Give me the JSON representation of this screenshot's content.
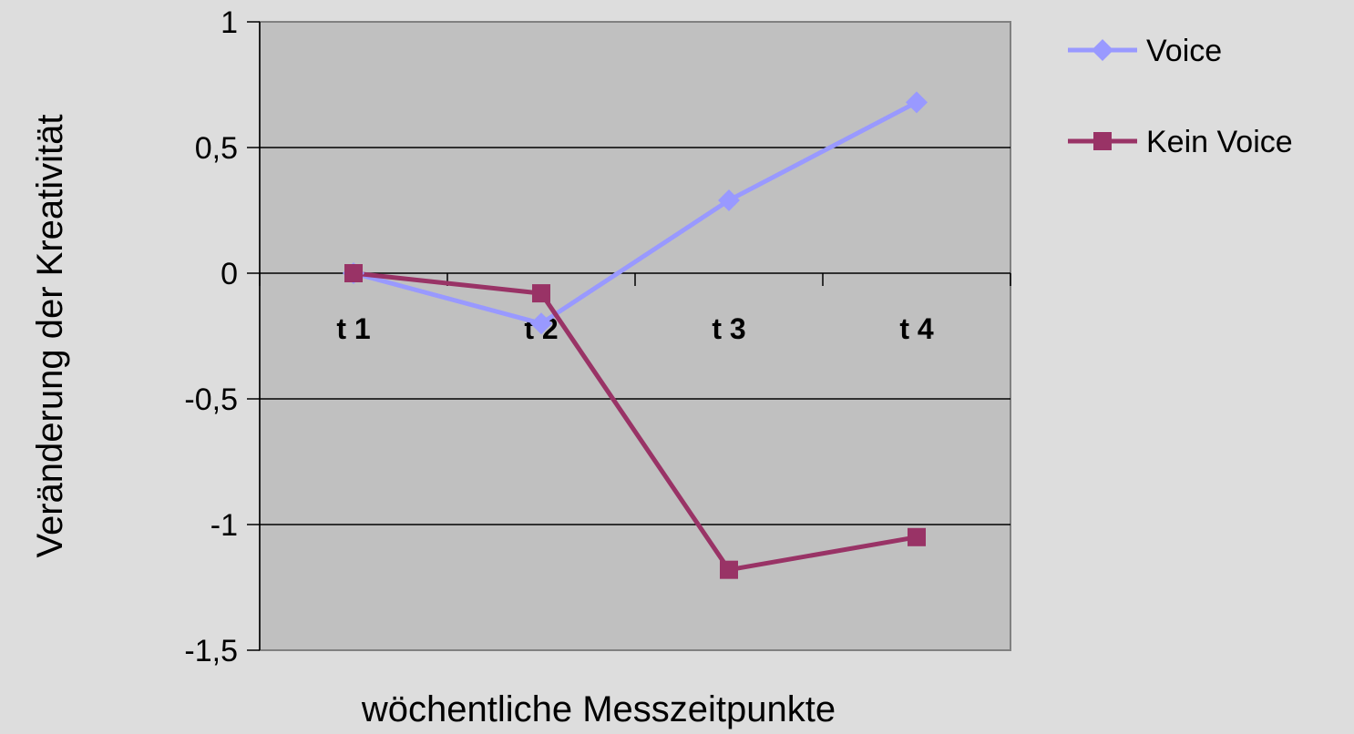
{
  "chart_data": {
    "type": "line",
    "categories": [
      "t 1",
      "t 2",
      "t 3",
      "t 4"
    ],
    "series": [
      {
        "name": "Voice",
        "values": [
          0,
          -0.2,
          0.29,
          0.68
        ],
        "color": "#9999ff",
        "marker": "diamond"
      },
      {
        "name": "Kein Voice",
        "values": [
          0,
          -0.08,
          -1.18,
          -1.05
        ],
        "color": "#993366",
        "marker": "square"
      }
    ],
    "title": "",
    "xlabel": "wöchentliche Messzeitpunkte",
    "ylabel": "Veränderung der Kreativität",
    "ylim": [
      -1.5,
      1
    ],
    "yticks": [
      "1",
      "0,5",
      "0",
      "-0,5",
      "-1",
      "-1,5"
    ],
    "grid": true,
    "legend_position": "right",
    "plot_background": "#c0c0c0",
    "page_background": "#dddddd"
  }
}
